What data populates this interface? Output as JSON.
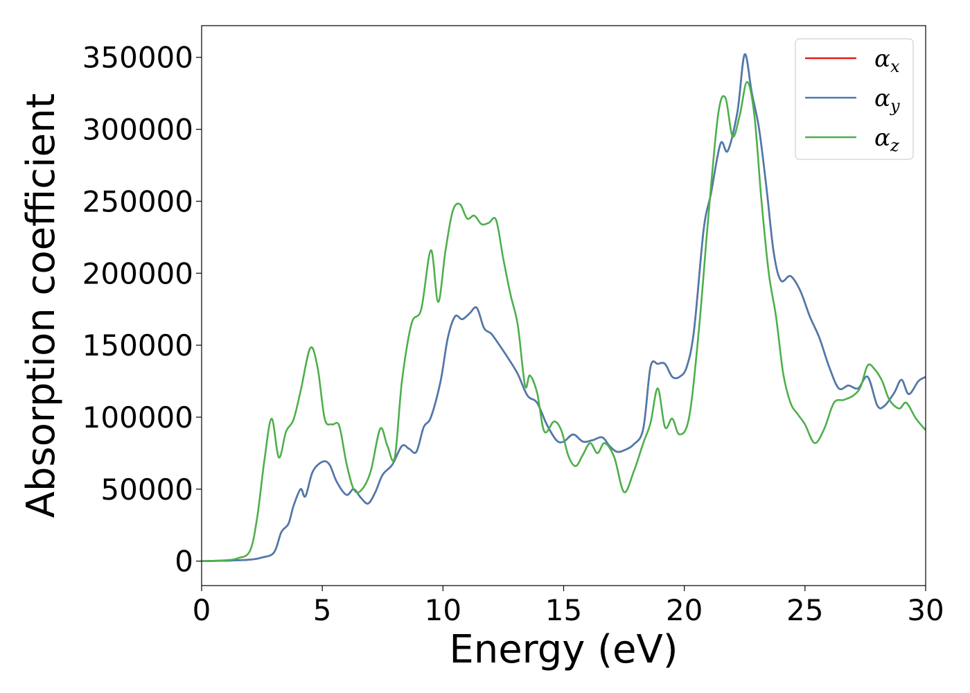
{
  "chart_data": {
    "type": "line",
    "title": "",
    "xlabel": "Energy (eV)",
    "ylabel": "Absorption coefficient",
    "xlim": [
      0,
      30
    ],
    "ylim": [
      -17000,
      372000
    ],
    "xticks": [
      0,
      5,
      10,
      15,
      20,
      25,
      30
    ],
    "xtick_labels": [
      "0",
      "5",
      "10",
      "15",
      "20",
      "25",
      "30"
    ],
    "yticks": [
      0,
      50000,
      100000,
      150000,
      200000,
      250000,
      300000,
      350000
    ],
    "ytick_labels": [
      "0",
      "50000",
      "100000",
      "150000",
      "200000",
      "250000",
      "300000",
      "350000"
    ],
    "grid": false,
    "legend_position": "top-right",
    "series": [
      {
        "name": "α",
        "subscript": "x",
        "color": "#e41a1c",
        "x": [
          0,
          1,
          2,
          2.5,
          3,
          3.3,
          3.6,
          3.8,
          4.1,
          4.3,
          4.6,
          5.0,
          5.3,
          5.6,
          6.0,
          6.3,
          6.6,
          6.9,
          7.2,
          7.5,
          7.9,
          8.3,
          8.6,
          8.9,
          9.2,
          9.5,
          9.9,
          10.2,
          10.5,
          10.8,
          11.1,
          11.4,
          11.7,
          12.0,
          12.3,
          12.7,
          13.1,
          13.5,
          13.9,
          14.3,
          14.7,
          15.0,
          15.4,
          15.8,
          16.2,
          16.6,
          16.9,
          17.2,
          17.5,
          17.9,
          18.3,
          18.6,
          18.9,
          19.2,
          19.5,
          19.8,
          20.1,
          20.4,
          20.8,
          21.1,
          21.5,
          21.8,
          22.2,
          22.5,
          22.8,
          23.1,
          23.4,
          23.7,
          24.0,
          24.4,
          24.8,
          25.2,
          25.6,
          26.0,
          26.4,
          26.8,
          27.2,
          27.6,
          28.0,
          28.3,
          28.7,
          29.0,
          29.3,
          29.7,
          30.0
        ],
        "y": [
          0,
          300,
          1000,
          2500,
          6000,
          20000,
          26000,
          38000,
          50000,
          45000,
          62000,
          69000,
          67000,
          55000,
          46000,
          50000,
          44000,
          40000,
          48000,
          60000,
          67000,
          80000,
          78000,
          76000,
          93000,
          100000,
          125000,
          155000,
          170000,
          168000,
          172000,
          176000,
          162000,
          158000,
          151000,
          141000,
          130000,
          115000,
          110000,
          95000,
          84000,
          83000,
          88000,
          83000,
          84000,
          86000,
          80000,
          76000,
          77000,
          81000,
          92000,
          135000,
          137000,
          137000,
          128000,
          128000,
          135000,
          160000,
          230000,
          255000,
          290000,
          285000,
          312000,
          352000,
          325000,
          300000,
          260000,
          215000,
          195000,
          198000,
          188000,
          170000,
          155000,
          135000,
          120000,
          122000,
          120000,
          128000,
          108000,
          108000,
          117000,
          126000,
          116000,
          125000,
          128000
        ]
      },
      {
        "name": "α",
        "subscript": "y",
        "color": "#4a7bb0",
        "x": [
          0,
          1,
          2,
          2.5,
          3,
          3.3,
          3.6,
          3.8,
          4.1,
          4.3,
          4.6,
          5.0,
          5.3,
          5.6,
          6.0,
          6.3,
          6.6,
          6.9,
          7.2,
          7.5,
          7.9,
          8.3,
          8.6,
          8.9,
          9.2,
          9.5,
          9.9,
          10.2,
          10.5,
          10.8,
          11.1,
          11.4,
          11.7,
          12.0,
          12.3,
          12.7,
          13.1,
          13.5,
          13.9,
          14.3,
          14.7,
          15.0,
          15.4,
          15.8,
          16.2,
          16.6,
          16.9,
          17.2,
          17.5,
          17.9,
          18.3,
          18.6,
          18.9,
          19.2,
          19.5,
          19.8,
          20.1,
          20.4,
          20.8,
          21.1,
          21.5,
          21.8,
          22.2,
          22.5,
          22.8,
          23.1,
          23.4,
          23.7,
          24.0,
          24.4,
          24.8,
          25.2,
          25.6,
          26.0,
          26.4,
          26.8,
          27.2,
          27.6,
          28.0,
          28.3,
          28.7,
          29.0,
          29.3,
          29.7,
          30.0
        ],
        "y": [
          0,
          300,
          1000,
          2500,
          6000,
          20000,
          26000,
          38000,
          50000,
          45000,
          62000,
          69000,
          67000,
          55000,
          46000,
          50000,
          44000,
          40000,
          48000,
          60000,
          67000,
          80000,
          78000,
          76000,
          93000,
          100000,
          125000,
          155000,
          170000,
          168000,
          172000,
          176000,
          162000,
          158000,
          151000,
          141000,
          130000,
          115000,
          110000,
          95000,
          84000,
          83000,
          88000,
          83000,
          84000,
          86000,
          80000,
          76000,
          77000,
          81000,
          92000,
          135000,
          137000,
          137000,
          128000,
          128000,
          135000,
          160000,
          230000,
          255000,
          290000,
          285000,
          312000,
          352000,
          325000,
          300000,
          260000,
          215000,
          195000,
          198000,
          188000,
          170000,
          155000,
          135000,
          120000,
          122000,
          120000,
          128000,
          108000,
          108000,
          117000,
          126000,
          116000,
          125000,
          128000
        ]
      },
      {
        "name": "α",
        "subscript": "z",
        "color": "#4daf4a",
        "x": [
          0,
          1,
          1.5,
          2,
          2.3,
          2.6,
          2.9,
          3.2,
          3.5,
          3.8,
          4.1,
          4.5,
          4.8,
          5.1,
          5.4,
          5.7,
          6.0,
          6.3,
          6.6,
          7.0,
          7.4,
          7.7,
          8.0,
          8.3,
          8.7,
          9.1,
          9.5,
          9.8,
          10.1,
          10.4,
          10.7,
          11.0,
          11.3,
          11.6,
          11.9,
          12.2,
          12.5,
          12.8,
          13.1,
          13.4,
          13.6,
          13.9,
          14.2,
          14.6,
          14.9,
          15.2,
          15.5,
          15.8,
          16.1,
          16.4,
          16.7,
          17.1,
          17.5,
          17.9,
          18.3,
          18.6,
          18.9,
          19.2,
          19.5,
          19.8,
          20.2,
          20.6,
          21.0,
          21.4,
          21.7,
          22.0,
          22.3,
          22.6,
          22.9,
          23.2,
          23.5,
          23.8,
          24.1,
          24.4,
          24.7,
          25.0,
          25.4,
          25.8,
          26.2,
          26.6,
          27.0,
          27.3,
          27.6,
          27.9,
          28.2,
          28.5,
          28.9,
          29.2,
          29.6,
          30.0
        ],
        "y": [
          0,
          600,
          2000,
          7000,
          30000,
          70000,
          99000,
          72000,
          90000,
          98000,
          118000,
          148000,
          135000,
          99000,
          95000,
          94000,
          68000,
          50000,
          49000,
          62000,
          92000,
          80000,
          72000,
          125000,
          165000,
          175000,
          216000,
          180000,
          215000,
          243000,
          248000,
          238000,
          240000,
          234000,
          235000,
          237000,
          210000,
          185000,
          164000,
          122000,
          129000,
          117000,
          90000,
          97000,
          91000,
          73000,
          66000,
          74000,
          82000,
          75000,
          82000,
          72000,
          48000,
          62000,
          82000,
          96000,
          120000,
          93000,
          99000,
          88000,
          100000,
          160000,
          240000,
          310000,
          322000,
          295000,
          310000,
          333000,
          310000,
          250000,
          200000,
          170000,
          130000,
          110000,
          102000,
          95000,
          82000,
          92000,
          110000,
          112000,
          115000,
          121000,
          136000,
          133000,
          125000,
          112000,
          106000,
          110000,
          99000,
          91000
        ]
      }
    ]
  }
}
